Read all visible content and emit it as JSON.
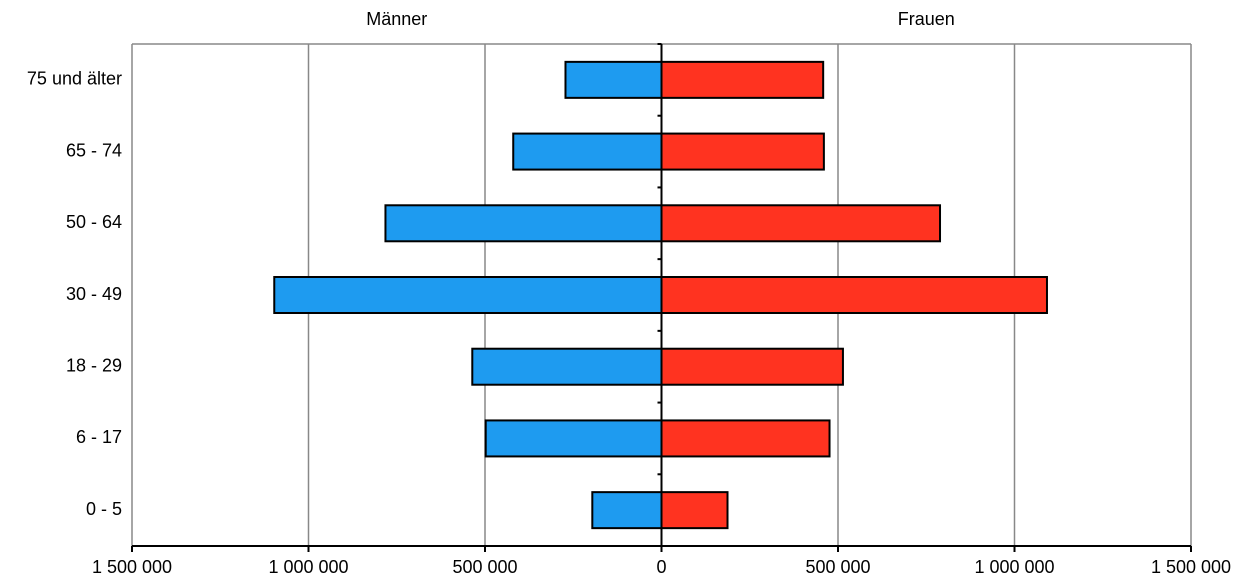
{
  "chart_data": {
    "type": "bar",
    "orientation": "horizontal",
    "layout": "population-pyramid",
    "categories": [
      "75 und älter",
      "65 - 74",
      "50 - 64",
      "30 - 49",
      "18 - 29",
      "6 - 17",
      "0 - 5"
    ],
    "series": [
      {
        "name": "Männer",
        "side": "left",
        "color": "#1e9bf0",
        "values": [
          272000,
          420000,
          782000,
          1097000,
          536000,
          498000,
          196000
        ]
      },
      {
        "name": "Frauen",
        "side": "right",
        "color": "#ff3320",
        "values": [
          458000,
          460000,
          789000,
          1092000,
          514000,
          476000,
          187000
        ]
      }
    ],
    "xlim": [
      -1500000,
      1500000
    ],
    "xticks": [
      -1500000,
      -1000000,
      -500000,
      0,
      500000,
      1000000,
      1500000
    ],
    "xtick_labels": [
      "1 500 000",
      "1 000 000",
      "500 000",
      "0",
      "500 000",
      "1 000 000",
      "1 500 000"
    ],
    "grid": "vertical",
    "grid_color": "#888888",
    "bar_outline_color": "#000000"
  }
}
